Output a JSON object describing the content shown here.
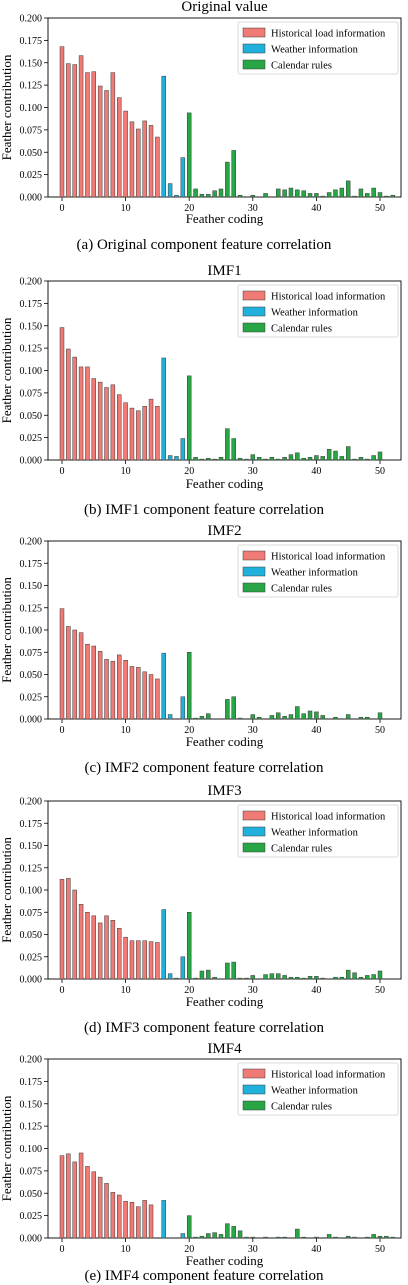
{
  "chart_data": [
    {
      "type": "bar",
      "title": "Original value",
      "caption": "(a) Original component feature correlation",
      "xlabel": "Feather coding",
      "ylabel": "Feather contribution",
      "ylim": [
        0,
        0.2
      ],
      "yticks": [
        "0.000",
        "0.025",
        "0.050",
        "0.075",
        "0.100",
        "0.125",
        "0.150",
        "0.175",
        "0.200"
      ],
      "xticks": [
        "0",
        "10",
        "20",
        "30",
        "40",
        "50"
      ],
      "legend": [
        "Historical load information",
        "Weather information",
        "Calendar rules"
      ],
      "series": [
        {
          "name": "Historical load information",
          "x": [
            0,
            1,
            2,
            3,
            4,
            5,
            6,
            7,
            8,
            9,
            10,
            11,
            12,
            13,
            14,
            15
          ],
          "values": [
            0.168,
            0.149,
            0.148,
            0.158,
            0.139,
            0.14,
            0.124,
            0.119,
            0.139,
            0.111,
            0.096,
            0.084,
            0.076,
            0.085,
            0.08,
            0.067
          ]
        },
        {
          "name": "Weather information",
          "x": [
            16,
            17,
            18,
            19
          ],
          "values": [
            0.135,
            0.015,
            0.002,
            0.044
          ]
        },
        {
          "name": "Calendar rules",
          "x": [
            20,
            21,
            22,
            23,
            24,
            25,
            26,
            27,
            28,
            29,
            30,
            31,
            32,
            33,
            34,
            35,
            36,
            37,
            38,
            39,
            40,
            41,
            42,
            43,
            44,
            45,
            46,
            47,
            48,
            49,
            50,
            51,
            52
          ],
          "values": [
            0.094,
            0.009,
            0.003,
            0.003,
            0.007,
            0.009,
            0.039,
            0.052,
            0.002,
            0.0,
            0.002,
            0.0,
            0.004,
            0.0,
            0.009,
            0.008,
            0.01,
            0.008,
            0.007,
            0.004,
            0.004,
            0.001,
            0.005,
            0.008,
            0.01,
            0.018,
            0.001,
            0.009,
            0.004,
            0.01,
            0.005,
            0.001,
            0.002
          ]
        }
      ]
    },
    {
      "type": "bar",
      "title": "IMF1",
      "caption": "(b) IMF1 component feature correlation",
      "xlabel": "Feather coding",
      "ylabel": "Feather contribution",
      "ylim": [
        0,
        0.2
      ],
      "yticks": [
        "0.000",
        "0.025",
        "0.050",
        "0.075",
        "0.100",
        "0.125",
        "0.150",
        "0.175",
        "0.200"
      ],
      "xticks": [
        "0",
        "10",
        "20",
        "30",
        "40",
        "50"
      ],
      "legend": [
        "Historical load information",
        "Weather information",
        "Calendar rules"
      ],
      "series": [
        {
          "name": "Historical load information",
          "x": [
            0,
            1,
            2,
            3,
            4,
            5,
            6,
            7,
            8,
            9,
            10,
            11,
            12,
            13,
            14,
            15
          ],
          "values": [
            0.148,
            0.124,
            0.115,
            0.104,
            0.104,
            0.091,
            0.087,
            0.081,
            0.084,
            0.073,
            0.064,
            0.058,
            0.055,
            0.06,
            0.068,
            0.06
          ]
        },
        {
          "name": "Weather information",
          "x": [
            16,
            17,
            18,
            19
          ],
          "values": [
            0.114,
            0.005,
            0.004,
            0.024
          ]
        },
        {
          "name": "Calendar rules",
          "x": [
            20,
            21,
            22,
            23,
            24,
            25,
            26,
            27,
            28,
            29,
            30,
            31,
            32,
            33,
            34,
            35,
            36,
            37,
            38,
            39,
            40,
            41,
            42,
            43,
            44,
            45,
            46,
            47,
            48,
            49,
            50,
            51,
            52
          ],
          "values": [
            0.094,
            0.003,
            0.001,
            0.002,
            0.001,
            0.003,
            0.035,
            0.024,
            0.002,
            0.001,
            0.006,
            0.003,
            0.001,
            0.003,
            0.001,
            0.003,
            0.006,
            0.008,
            0.002,
            0.003,
            0.005,
            0.004,
            0.012,
            0.01,
            0.004,
            0.015,
            0.001,
            0.003,
            0.001,
            0.005,
            0.009,
            0.0,
            0.0
          ]
        }
      ]
    },
    {
      "type": "bar",
      "title": "IMF2",
      "caption": "(c) IMF2 component feature correlation",
      "xlabel": "Feather coding",
      "ylabel": "Feather contribution",
      "ylim": [
        0,
        0.2
      ],
      "yticks": [
        "0.000",
        "0.025",
        "0.050",
        "0.075",
        "0.100",
        "0.125",
        "0.150",
        "0.175",
        "0.200"
      ],
      "xticks": [
        "0",
        "10",
        "20",
        "30",
        "40",
        "50"
      ],
      "legend": [
        "Historical load information",
        "Weather information",
        "Calendar rules"
      ],
      "series": [
        {
          "name": "Historical load information",
          "x": [
            0,
            1,
            2,
            3,
            4,
            5,
            6,
            7,
            8,
            9,
            10,
            11,
            12,
            13,
            14,
            15
          ],
          "values": [
            0.124,
            0.104,
            0.1,
            0.097,
            0.084,
            0.082,
            0.076,
            0.067,
            0.065,
            0.072,
            0.066,
            0.059,
            0.058,
            0.053,
            0.05,
            0.045
          ]
        },
        {
          "name": "Weather information",
          "x": [
            16,
            17,
            18,
            19
          ],
          "values": [
            0.074,
            0.005,
            0.0,
            0.025
          ]
        },
        {
          "name": "Calendar rules",
          "x": [
            20,
            21,
            22,
            23,
            24,
            25,
            26,
            27,
            28,
            29,
            30,
            31,
            32,
            33,
            34,
            35,
            36,
            37,
            38,
            39,
            40,
            41,
            42,
            43,
            44,
            45,
            46,
            47,
            48,
            49,
            50,
            51,
            52
          ],
          "values": [
            0.075,
            0.001,
            0.003,
            0.006,
            0.0,
            0.0,
            0.022,
            0.025,
            0.001,
            0.0,
            0.005,
            0.002,
            0.0,
            0.004,
            0.007,
            0.003,
            0.005,
            0.014,
            0.006,
            0.009,
            0.008,
            0.004,
            0.0,
            0.002,
            0.0,
            0.005,
            0.0,
            0.002,
            0.002,
            0.0,
            0.007,
            0.0,
            0.0
          ]
        }
      ]
    },
    {
      "type": "bar",
      "title": "IMF3",
      "caption": "(d) IMF3 component feature correlation",
      "xlabel": "Feather coding",
      "ylabel": "Feather contribution",
      "ylim": [
        0,
        0.2
      ],
      "yticks": [
        "0.000",
        "0.025",
        "0.050",
        "0.075",
        "0.100",
        "0.125",
        "0.150",
        "0.175",
        "0.200"
      ],
      "xticks": [
        "0",
        "10",
        "20",
        "30",
        "40",
        "50"
      ],
      "legend": [
        "Historical load information",
        "Weather information",
        "Calendar rules"
      ],
      "series": [
        {
          "name": "Historical load information",
          "x": [
            0,
            1,
            2,
            3,
            4,
            5,
            6,
            7,
            8,
            9,
            10,
            11,
            12,
            13,
            14,
            15
          ],
          "values": [
            0.112,
            0.113,
            0.1,
            0.084,
            0.075,
            0.071,
            0.063,
            0.071,
            0.066,
            0.057,
            0.047,
            0.043,
            0.043,
            0.043,
            0.042,
            0.041
          ]
        },
        {
          "name": "Weather information",
          "x": [
            16,
            17,
            18,
            19
          ],
          "values": [
            0.078,
            0.006,
            0.001,
            0.025
          ]
        },
        {
          "name": "Calendar rules",
          "x": [
            20,
            21,
            22,
            23,
            24,
            25,
            26,
            27,
            28,
            29,
            30,
            31,
            32,
            33,
            34,
            35,
            36,
            37,
            38,
            39,
            40,
            41,
            42,
            43,
            44,
            45,
            46,
            47,
            48,
            49,
            50,
            51,
            52
          ],
          "values": [
            0.075,
            0.001,
            0.009,
            0.01,
            0.002,
            0.0,
            0.018,
            0.019,
            0.001,
            0.001,
            0.004,
            0.0,
            0.005,
            0.006,
            0.006,
            0.004,
            0.002,
            0.002,
            0.001,
            0.003,
            0.003,
            0.001,
            0.0,
            0.002,
            0.002,
            0.01,
            0.007,
            0.002,
            0.004,
            0.005,
            0.009,
            0.0,
            0.0
          ]
        }
      ]
    },
    {
      "type": "bar",
      "title": "IMF4",
      "caption": "(e) IMF4 component feature correlation",
      "xlabel": "Feather coding",
      "ylabel": "Feather contribution",
      "ylim": [
        0,
        0.2
      ],
      "yticks": [
        "0.000",
        "0.025",
        "0.050",
        "0.075",
        "0.100",
        "0.125",
        "0.150",
        "0.175",
        "0.200"
      ],
      "xticks": [
        "0",
        "10",
        "20",
        "30",
        "40",
        "50"
      ],
      "legend": [
        "Historical load information",
        "Weather information",
        "Calendar rules"
      ],
      "series": [
        {
          "name": "Historical load information",
          "x": [
            0,
            1,
            2,
            3,
            4,
            5,
            6,
            7,
            8,
            9,
            10,
            11,
            12,
            13,
            14,
            15
          ],
          "values": [
            0.092,
            0.094,
            0.085,
            0.095,
            0.08,
            0.074,
            0.068,
            0.061,
            0.051,
            0.048,
            0.041,
            0.04,
            0.035,
            0.042,
            0.037,
            0.0
          ]
        },
        {
          "name": "Weather information",
          "x": [
            16,
            17,
            18,
            19
          ],
          "values": [
            0.042,
            0.0,
            0.0,
            0.005
          ]
        },
        {
          "name": "Calendar rules",
          "x": [
            20,
            21,
            22,
            23,
            24,
            25,
            26,
            27,
            28,
            29,
            30,
            31,
            32,
            33,
            34,
            35,
            36,
            37,
            38,
            39,
            40,
            41,
            42,
            43,
            44,
            45,
            46,
            47,
            48,
            49,
            50,
            51,
            52
          ],
          "values": [
            0.025,
            0.001,
            0.002,
            0.005,
            0.006,
            0.004,
            0.016,
            0.013,
            0.008,
            0.001,
            0.001,
            0.0,
            0.001,
            0.0,
            0.001,
            0.001,
            0.0,
            0.01,
            0.001,
            0.0,
            0.001,
            0.0,
            0.004,
            0.001,
            0.0,
            0.002,
            0.001,
            0.0,
            0.001,
            0.004,
            0.002,
            0.002,
            0.001
          ]
        }
      ]
    }
  ],
  "legend_colors": {
    "Historical load information": "#f07a75",
    "Weather information": "#1fb0dc",
    "Calendar rules": "#28a645"
  },
  "bar_edge_color": "#3a3a3a"
}
